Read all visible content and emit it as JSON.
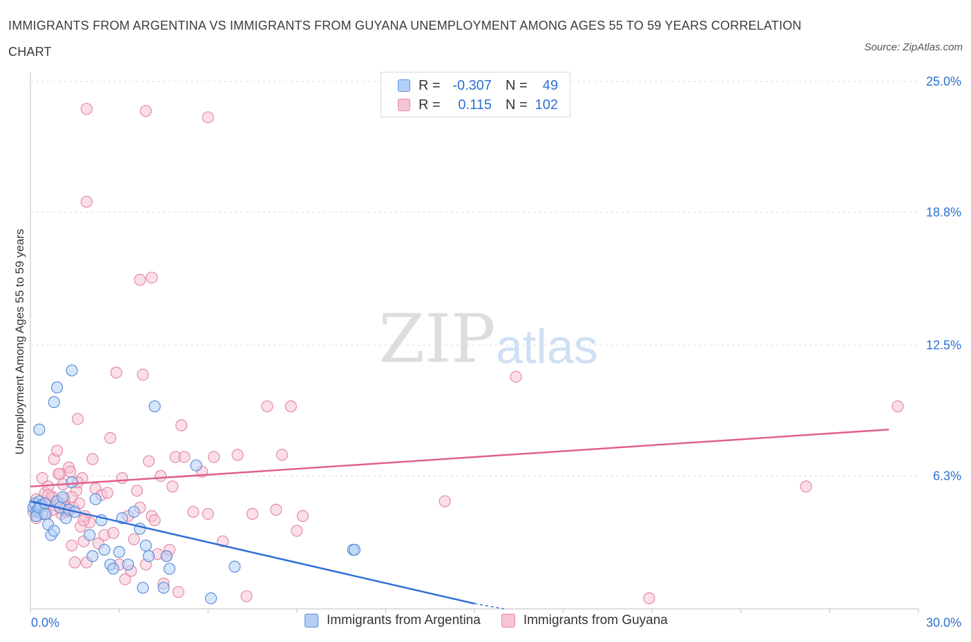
{
  "title": "IMMIGRANTS FROM ARGENTINA VS IMMIGRANTS FROM GUYANA UNEMPLOYMENT AMONG AGES 55 TO 59 YEARS CORRELATION CHART",
  "source": "Source: ZipAtlas.com",
  "watermark": {
    "zip": "ZIP",
    "atlas": "atlas"
  },
  "colors": {
    "argentina": "#5b8fd8",
    "argentina_fill": "#b4cff5",
    "guyana": "#e28aa8",
    "guyana_fill": "#f7c4d4",
    "trend_argentina": "#2f6fd6",
    "trend_guyana": "#e0608a",
    "value_text": "#2d6fcf"
  },
  "legend": {
    "argentina": {
      "r_label": "R =",
      "r_value": "-0.307",
      "n_label": "N =",
      "n_value": "49"
    },
    "guyana": {
      "r_label": "R =",
      "r_value": "0.115",
      "n_label": "N =",
      "n_value": "102"
    }
  },
  "series_labels": {
    "argentina": "Immigrants from Argentina",
    "guyana": "Immigrants from Guyana"
  },
  "chart_data": {
    "type": "scatter",
    "title": "IMMIGRANTS FROM ARGENTINA VS IMMIGRANTS FROM GUYANA UNEMPLOYMENT AMONG AGES 55 TO 59 YEARS CORRELATION CHART",
    "xlabel": "",
    "ylabel": "Unemployment Among Ages 55 to 59 years",
    "xlim": [
      0,
      30
    ],
    "ylim": [
      0,
      25
    ],
    "x_tick_labels": [
      {
        "value": 0,
        "label": "0.0%"
      },
      {
        "value": 30,
        "label": "30.0%"
      }
    ],
    "y_tick_labels": [
      {
        "value": 6.3,
        "label": "6.3%"
      },
      {
        "value": 12.5,
        "label": "12.5%"
      },
      {
        "value": 18.8,
        "label": "18.8%"
      },
      {
        "value": 25.0,
        "label": "25.0%"
      }
    ],
    "grid": true,
    "legend_position": "top-center",
    "series": [
      {
        "name": "Immigrants from Argentina",
        "x": [
          0.1,
          0.15,
          0.2,
          0.25,
          0.3,
          0.35,
          0.4,
          0.2,
          0.3,
          0.5,
          0.6,
          0.7,
          0.8,
          0.9,
          1.0,
          1.1,
          1.2,
          1.3,
          1.4,
          1.5,
          2.0,
          2.1,
          2.2,
          2.4,
          2.5,
          2.7,
          2.8,
          3.0,
          3.1,
          3.3,
          3.5,
          3.7,
          3.8,
          3.9,
          4.0,
          4.2,
          4.5,
          4.6,
          4.7,
          5.6,
          6.1,
          6.9,
          10.9,
          10.95,
          1.4,
          0.9,
          0.8,
          0.3,
          0.5
        ],
        "y": [
          4.8,
          5.0,
          4.6,
          4.7,
          5.1,
          4.9,
          4.5,
          4.4,
          4.8,
          4.5,
          4.0,
          3.5,
          3.7,
          5.1,
          4.8,
          5.3,
          4.3,
          4.7,
          6.0,
          4.6,
          3.5,
          2.5,
          5.2,
          4.2,
          2.8,
          2.1,
          1.9,
          2.7,
          4.3,
          2.1,
          4.6,
          3.8,
          1.0,
          3.0,
          2.5,
          9.6,
          1.0,
          2.5,
          1.9,
          6.8,
          0.5,
          2.0,
          2.8,
          2.8,
          11.3,
          10.5,
          9.8,
          8.5,
          5.0
        ]
      },
      {
        "name": "Immigrants from Guyana",
        "x": [
          0.1,
          0.2,
          0.3,
          0.4,
          0.5,
          0.6,
          0.7,
          0.8,
          0.9,
          1.0,
          1.1,
          1.2,
          1.3,
          1.4,
          1.5,
          1.6,
          1.7,
          1.8,
          1.9,
          2.0,
          2.1,
          2.2,
          2.3,
          2.4,
          2.5,
          2.6,
          2.7,
          2.8,
          2.9,
          3.0,
          3.1,
          3.2,
          3.3,
          3.4,
          3.5,
          3.6,
          3.7,
          3.8,
          3.9,
          4.0,
          4.1,
          4.2,
          4.3,
          4.4,
          4.5,
          4.6,
          4.7,
          4.8,
          4.9,
          5.0,
          5.1,
          5.2,
          5.5,
          5.8,
          6.0,
          6.2,
          6.5,
          7.0,
          7.3,
          7.5,
          8.0,
          8.3,
          8.5,
          8.8,
          9.0,
          9.2,
          1.9,
          3.9,
          6.0,
          1.9,
          3.7,
          4.1,
          14.0,
          16.4,
          20.9,
          26.2,
          29.3,
          0.3,
          0.45,
          0.55,
          0.65,
          0.75,
          0.85,
          0.95,
          1.05,
          1.15,
          1.25,
          1.35,
          1.45,
          1.55,
          1.65,
          1.75,
          1.85,
          0.2,
          0.4,
          0.6,
          0.8,
          1.0,
          1.2,
          1.4,
          1.6,
          1.8
        ],
        "y": [
          4.6,
          5.2,
          4.9,
          6.2,
          5.5,
          5.8,
          5.3,
          7.1,
          7.5,
          6.4,
          5.9,
          4.8,
          6.7,
          3.0,
          2.2,
          9.0,
          3.9,
          3.2,
          2.2,
          4.1,
          7.1,
          5.7,
          3.1,
          5.4,
          3.5,
          5.5,
          8.1,
          3.6,
          11.2,
          2.1,
          6.2,
          1.4,
          4.4,
          1.8,
          3.3,
          5.6,
          4.8,
          11.1,
          2.1,
          7.0,
          4.4,
          4.2,
          2.6,
          6.3,
          1.2,
          2.5,
          2.8,
          5.8,
          7.2,
          0.8,
          8.7,
          7.2,
          4.6,
          6.5,
          4.5,
          7.2,
          3.2,
          7.3,
          0.6,
          4.5,
          9.6,
          4.7,
          7.3,
          9.6,
          3.7,
          4.4,
          23.7,
          23.6,
          23.3,
          19.3,
          15.6,
          15.7,
          5.1,
          11.0,
          0.5,
          5.8,
          9.6,
          4.8,
          5.0,
          4.5,
          5.1,
          5.3,
          4.9,
          6.4,
          4.5,
          5.2,
          4.6,
          6.5,
          4.8,
          5.6,
          5.0,
          6.2,
          4.4,
          4.3,
          4.9,
          5.4,
          4.7,
          5.0,
          4.6,
          5.3,
          6.0,
          4.2
        ]
      }
    ],
    "trend_lines": [
      {
        "series": "Immigrants from Argentina",
        "x": [
          0,
          15.0
        ],
        "y": [
          5.1,
          0.25
        ],
        "dashed_extension": {
          "x": [
            15.0,
            16.0
          ],
          "y": [
            0.25,
            0.0
          ]
        }
      },
      {
        "series": "Immigrants from Guyana",
        "x": [
          0,
          29.0
        ],
        "y": [
          5.8,
          8.5
        ]
      }
    ]
  }
}
